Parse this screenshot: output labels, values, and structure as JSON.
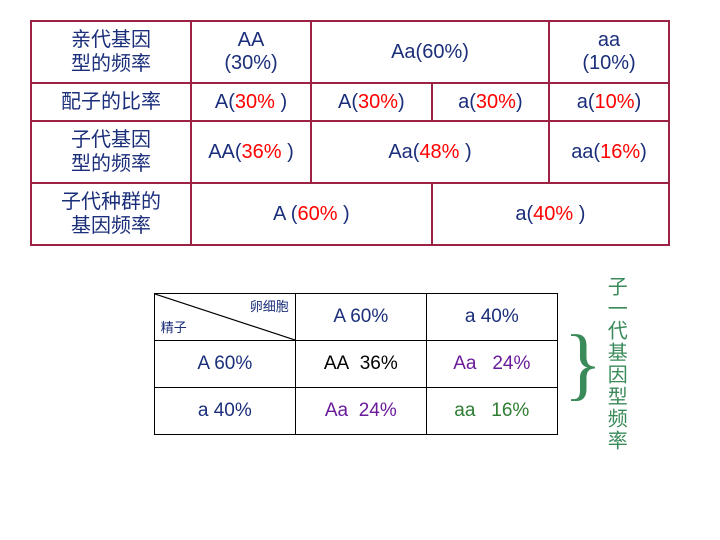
{
  "top": {
    "row1": {
      "header": "亲代基因型的频率",
      "c1a": "AA",
      "c1b": "(30%)",
      "c2": "Aa(60%)",
      "c3a": "aa",
      "c3b": "(10%)"
    },
    "row2": {
      "header": "配子的比率",
      "c1p": "A(",
      "c1v": "30%",
      "c1s": " )",
      "c2p": "A(",
      "c2v": "30%",
      "c2s": ")",
      "c3p": "a(",
      "c3v": "30%",
      "c3s": ")",
      "c4p": "a(",
      "c4v": "10%",
      "c4s": ")"
    },
    "row3": {
      "header": "子代基因型的频率",
      "c1p": "AA(",
      "c1v": "36%",
      "c1s": " )",
      "c2p": "Aa(",
      "c2v": "48%",
      "c2s": " )",
      "c3p": "aa(",
      "c3v": "16%",
      "c3s": ")"
    },
    "row4": {
      "header": "子代种群的基因频率",
      "c1p": "A (",
      "c1v": "60%",
      "c1s": " )",
      "c2p": "a(",
      "c2v": "40%",
      "c2s": " )"
    }
  },
  "punnett": {
    "diag": {
      "sperm": "精子",
      "egg": "卵细胞"
    },
    "colA": "A 60%",
    "cola": "a 40%",
    "rowA": "A 60%",
    "rowa": "a 40%",
    "AA_g": "AA",
    "AA_v": "36%",
    "Aa1_g": "Aa",
    "Aa1_v": "24%",
    "Aa2_g": "Aa",
    "Aa2_v": "24%",
    "aa_g": "aa",
    "aa_v": "16%"
  },
  "label": {
    "brace": "}",
    "vert": "子一代基因型频率"
  },
  "colors": {
    "border_top": "#9b2242",
    "navy": "#1a2e7a",
    "red": "#ff0000",
    "green": "#3a8a5a",
    "purple": "#6a1b9a",
    "cell_green": "#2e7d32",
    "black": "#000000"
  }
}
